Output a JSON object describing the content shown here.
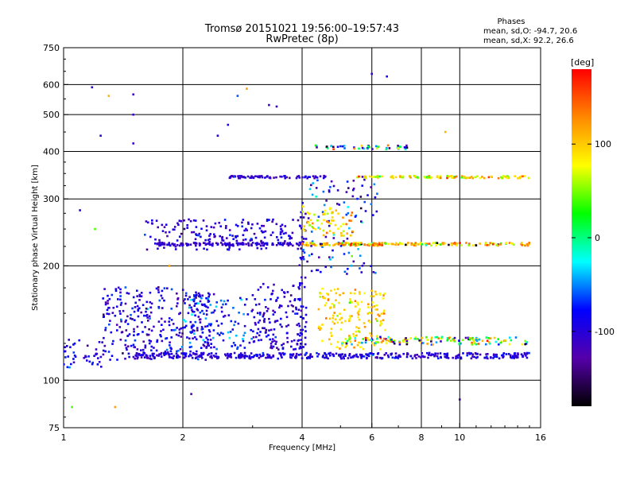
{
  "titles": {
    "line1": "Tromsø 20151021 19:56:00–19:57:43",
    "line2": "RwPretec (8p)"
  },
  "phases": {
    "heading": "Phases",
    "line_o": "mean, sd,O: -94.7, 20.6",
    "line_x": "mean, sd,X:  92.2, 26.6"
  },
  "colorbar": {
    "unit": "[deg]",
    "ticks": [
      {
        "value": 100,
        "label": "100"
      },
      {
        "value": 0,
        "label": "0"
      },
      {
        "value": -100,
        "label": "-100"
      }
    ],
    "range": [
      -180,
      180
    ],
    "colors": [
      "#000000",
      "#5500aa",
      "#0000ff",
      "#00ffff",
      "#00ff00",
      "#ffff00",
      "#ff8800",
      "#ff0000"
    ]
  },
  "chart_data": {
    "type": "scatter",
    "xlabel": "Frequency [MHz]",
    "ylabel": "Stationary phase Virtual Height [km]",
    "x_scale": "log",
    "y_scale": "log",
    "xlim": [
      1,
      16
    ],
    "ylim": [
      75,
      750
    ],
    "grid": true,
    "x_ticks": [
      {
        "value": 1,
        "label": "1"
      },
      {
        "value": 2,
        "label": "2"
      },
      {
        "value": 4,
        "label": "4"
      },
      {
        "value": 6,
        "label": "6"
      },
      {
        "value": 8,
        "label": "8"
      },
      {
        "value": 10,
        "label": "10"
      },
      {
        "value": 16,
        "label": "16"
      }
    ],
    "y_ticks": [
      {
        "value": 75,
        "label": "75"
      },
      {
        "value": 100,
        "label": "100"
      },
      {
        "value": 200,
        "label": "200"
      },
      {
        "value": 300,
        "label": "300"
      },
      {
        "value": 400,
        "label": "400"
      },
      {
        "value": 500,
        "label": "500"
      },
      {
        "value": 600,
        "label": "600"
      },
      {
        "value": 750,
        "label": "750"
      }
    ],
    "x_grid": [
      2,
      4,
      6,
      8,
      10
    ],
    "y_grid": [
      100,
      200,
      300,
      400,
      500,
      600
    ],
    "echo_clusters": [
      {
        "mode": "O",
        "f_min": 1.0,
        "f_max": 1.25,
        "h_min": 108,
        "h_max": 128,
        "phase_mean": -95,
        "phase_sd": 20,
        "count": 40
      },
      {
        "mode": "O",
        "f_min": 1.25,
        "f_max": 2.4,
        "h_min": 113,
        "h_max": 176,
        "phase_mean": -95,
        "phase_sd": 22,
        "count": 320
      },
      {
        "mode": "O",
        "f_min": 1.5,
        "f_max": 15.0,
        "h_min": 114,
        "h_max": 118,
        "phase_mean": -100,
        "phase_sd": 15,
        "count": 420
      },
      {
        "mode": "O",
        "f_min": 2.0,
        "f_max": 3.0,
        "h_min": 120,
        "h_max": 165,
        "phase_mean": -75,
        "phase_sd": 25,
        "count": 110
      },
      {
        "mode": "O",
        "f_min": 3.0,
        "f_max": 4.0,
        "h_min": 120,
        "h_max": 180,
        "phase_mean": -100,
        "phase_sd": 18,
        "count": 130
      },
      {
        "mode": "O",
        "f_min": 1.6,
        "f_max": 3.8,
        "h_min": 220,
        "h_max": 265,
        "phase_mean": -100,
        "phase_sd": 18,
        "count": 180
      },
      {
        "mode": "O",
        "f_min": 1.7,
        "f_max": 4.0,
        "h_min": 226,
        "h_max": 230,
        "phase_mean": -105,
        "phase_sd": 10,
        "count": 120
      },
      {
        "mode": "O",
        "f_min": 2.6,
        "f_max": 4.6,
        "h_min": 340,
        "h_max": 345,
        "phase_mean": -105,
        "phase_sd": 12,
        "count": 70
      },
      {
        "mode": "O",
        "f_min": 3.9,
        "f_max": 4.1,
        "h_min": 120,
        "h_max": 280,
        "phase_mean": -100,
        "phase_sd": 15,
        "count": 60
      },
      {
        "mode": "O",
        "f_min": 4.0,
        "f_max": 6.2,
        "h_min": 190,
        "h_max": 345,
        "phase_mean": -80,
        "phase_sd": 35,
        "count": 110
      },
      {
        "mode": "X",
        "f_min": 4.4,
        "f_max": 6.5,
        "h_min": 120,
        "h_max": 175,
        "phase_mean": 95,
        "phase_sd": 20,
        "count": 160
      },
      {
        "mode": "X",
        "f_min": 4.0,
        "f_max": 5.5,
        "h_min": 240,
        "h_max": 290,
        "phase_mean": 95,
        "phase_sd": 25,
        "count": 60
      },
      {
        "mode": "X",
        "f_min": 4.0,
        "f_max": 15.0,
        "h_min": 226,
        "h_max": 230,
        "phase_mean": 110,
        "phase_sd": 40,
        "count": 200
      },
      {
        "mode": "X",
        "f_min": 5.5,
        "f_max": 15.0,
        "h_min": 340,
        "h_max": 345,
        "phase_mean": 85,
        "phase_sd": 30,
        "count": 110
      },
      {
        "mode": "X",
        "f_min": 5.0,
        "f_max": 15.0,
        "h_min": 124,
        "h_max": 130,
        "phase_mean": 20,
        "phase_sd": 90,
        "count": 150
      },
      {
        "mode": "X",
        "f_min": 4.3,
        "f_max": 7.5,
        "h_min": 405,
        "h_max": 415,
        "phase_mean": -20,
        "phase_sd": 90,
        "count": 45
      }
    ],
    "isolated_points": [
      {
        "x": 1.18,
        "y": 590,
        "phase": -105
      },
      {
        "x": 1.24,
        "y": 440,
        "phase": -105
      },
      {
        "x": 1.3,
        "y": 560,
        "phase": 110
      },
      {
        "x": 1.5,
        "y": 565,
        "phase": -110
      },
      {
        "x": 1.5,
        "y": 500,
        "phase": -110
      },
      {
        "x": 1.5,
        "y": 420,
        "phase": -110
      },
      {
        "x": 1.85,
        "y": 200,
        "phase": 120
      },
      {
        "x": 2.45,
        "y": 440,
        "phase": -100
      },
      {
        "x": 2.6,
        "y": 470,
        "phase": -95
      },
      {
        "x": 2.75,
        "y": 560,
        "phase": -60
      },
      {
        "x": 2.9,
        "y": 585,
        "phase": 120
      },
      {
        "x": 3.3,
        "y": 530,
        "phase": -110
      },
      {
        "x": 3.45,
        "y": 525,
        "phase": -110
      },
      {
        "x": 6.0,
        "y": 640,
        "phase": -105
      },
      {
        "x": 6.55,
        "y": 630,
        "phase": -90
      },
      {
        "x": 9.2,
        "y": 450,
        "phase": 110
      },
      {
        "x": 10.0,
        "y": 89,
        "phase": -140
      },
      {
        "x": 2.1,
        "y": 92,
        "phase": -120
      },
      {
        "x": 1.05,
        "y": 85,
        "phase": 40
      },
      {
        "x": 1.35,
        "y": 85,
        "phase": 120
      },
      {
        "x": 1.2,
        "y": 250,
        "phase": 40
      },
      {
        "x": 1.1,
        "y": 280,
        "phase": -100
      }
    ]
  }
}
